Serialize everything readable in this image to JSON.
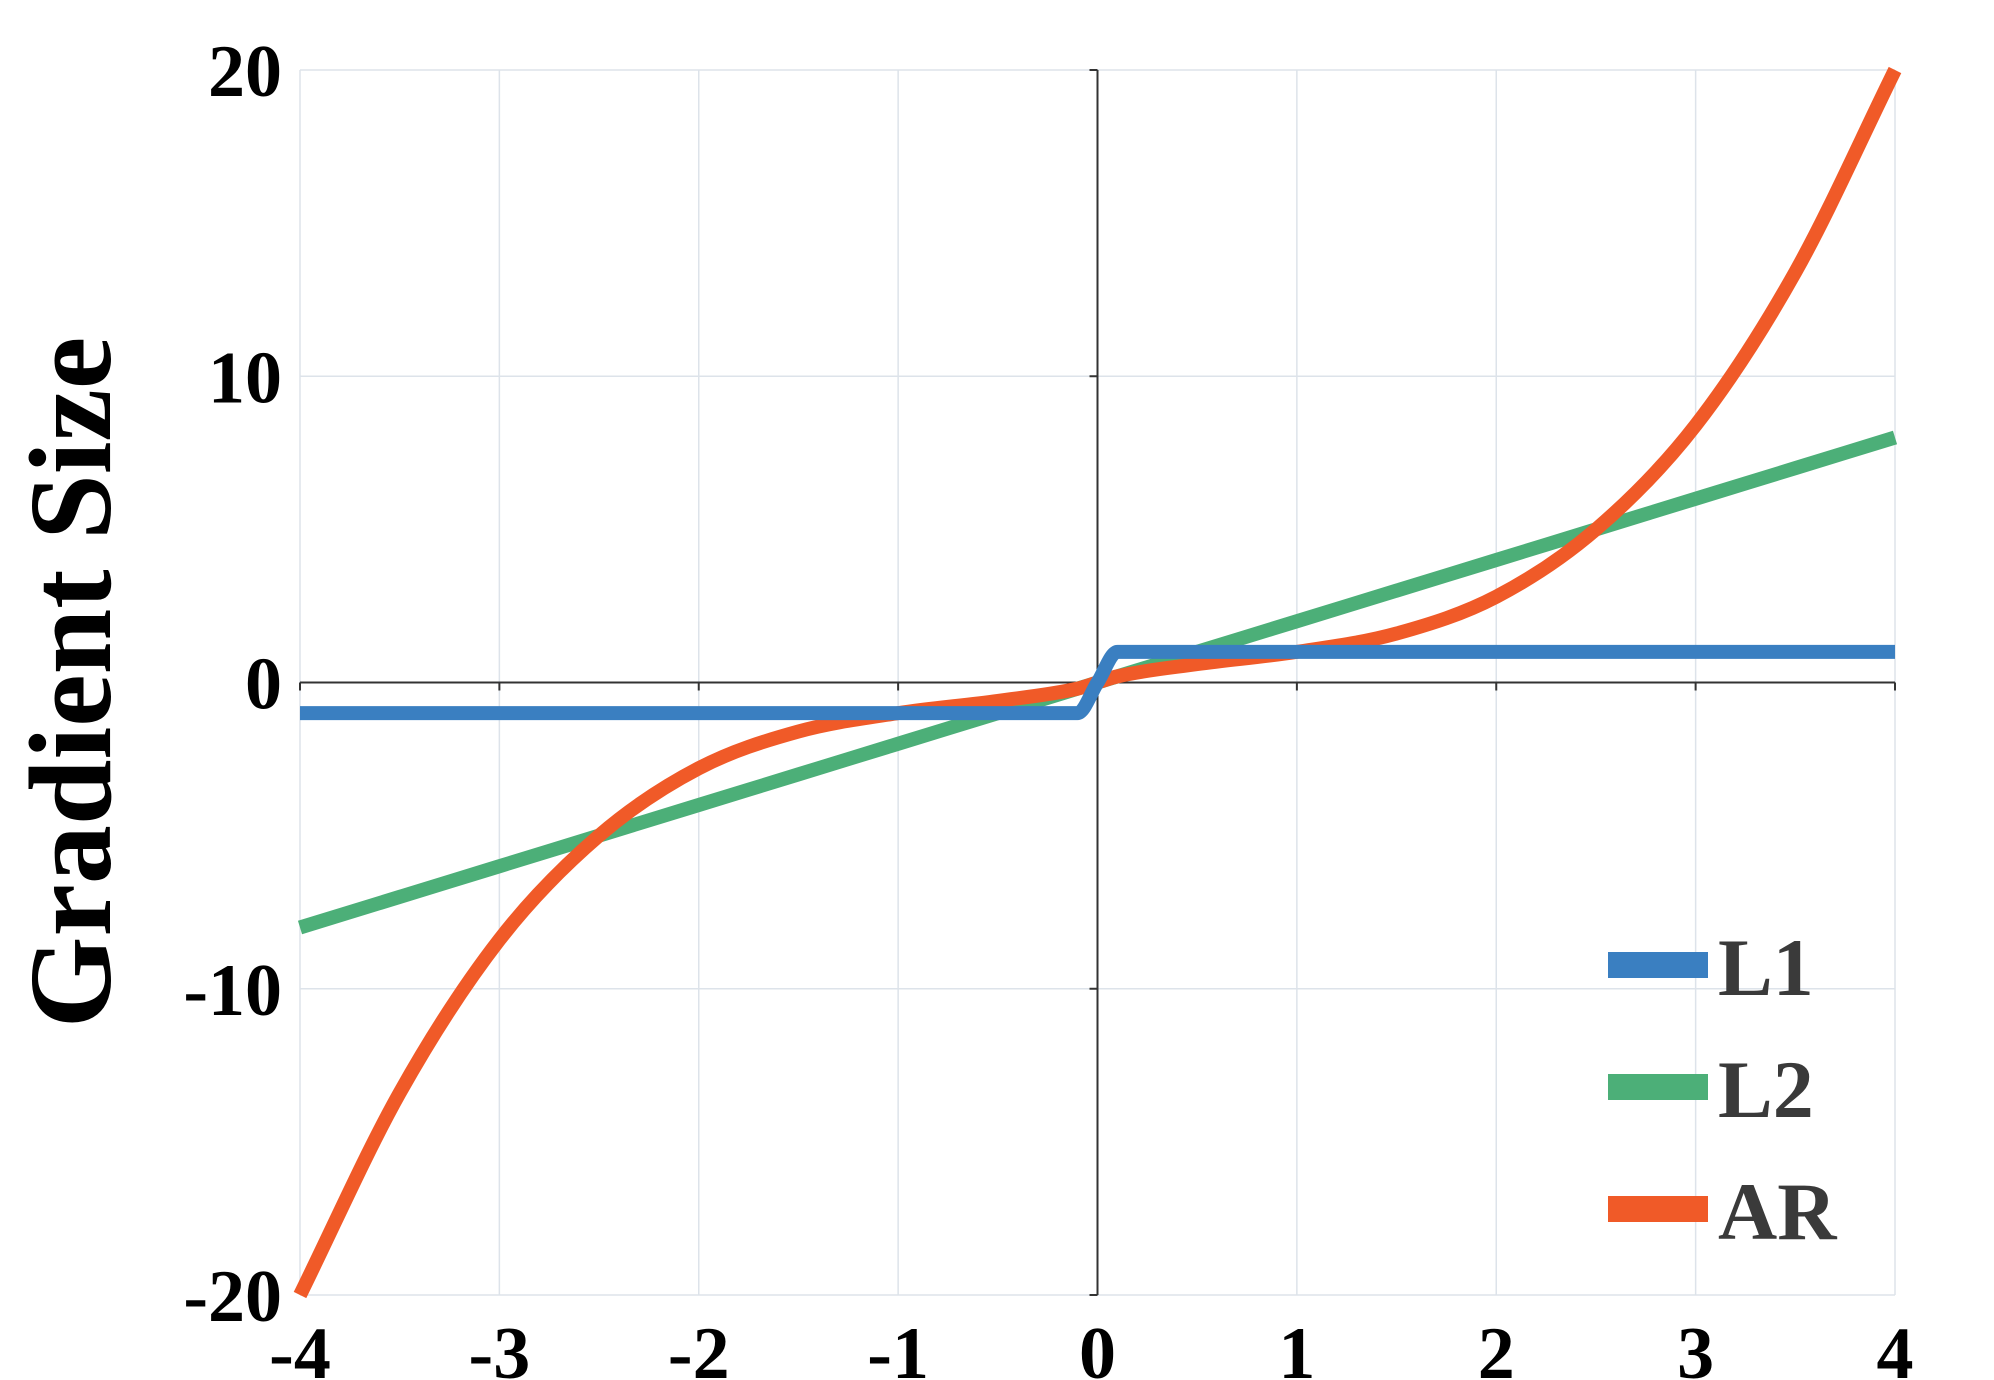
{
  "chart_data": {
    "type": "line",
    "title": "",
    "xlabel": "",
    "ylabel": "Gradient Size",
    "xlim": [
      -4,
      4
    ],
    "ylim": [
      -20,
      20
    ],
    "x_ticks": [
      "-4",
      "-3",
      "-2",
      "-1",
      "0",
      "1",
      "2",
      "3",
      "4"
    ],
    "y_ticks": [
      "-20",
      "-10",
      "0",
      "10",
      "20"
    ],
    "grid": true,
    "legend_position": "bottom-right",
    "x": [
      -4,
      -3.5,
      -3,
      -2.5,
      -2,
      -1.5,
      -1,
      -0.5,
      -0.1,
      0,
      0.1,
      0.5,
      1,
      1.5,
      2,
      2.5,
      3,
      3.5,
      4
    ],
    "series": [
      {
        "name": "L1",
        "color": "#3a7fc1",
        "values": [
          -1,
          -1,
          -1,
          -1,
          -1,
          -1,
          -1,
          -1,
          -1,
          0,
          1,
          1,
          1,
          1,
          1,
          1,
          1,
          1,
          1
        ]
      },
      {
        "name": "L2",
        "color": "#4caf78",
        "values": [
          -8,
          -7,
          -6,
          -5,
          -4,
          -3,
          -2,
          -1,
          -0.2,
          0,
          0.2,
          1,
          2,
          3,
          4,
          5,
          6,
          7,
          8
        ]
      },
      {
        "name": "AR",
        "color": "#f05a28",
        "values": [
          -20,
          -13.4,
          -8.4,
          -5,
          -2.8,
          -1.6,
          -1,
          -0.6,
          -0.2,
          0,
          0.2,
          0.6,
          1,
          1.6,
          2.8,
          5,
          8.4,
          13.4,
          20
        ]
      }
    ]
  }
}
